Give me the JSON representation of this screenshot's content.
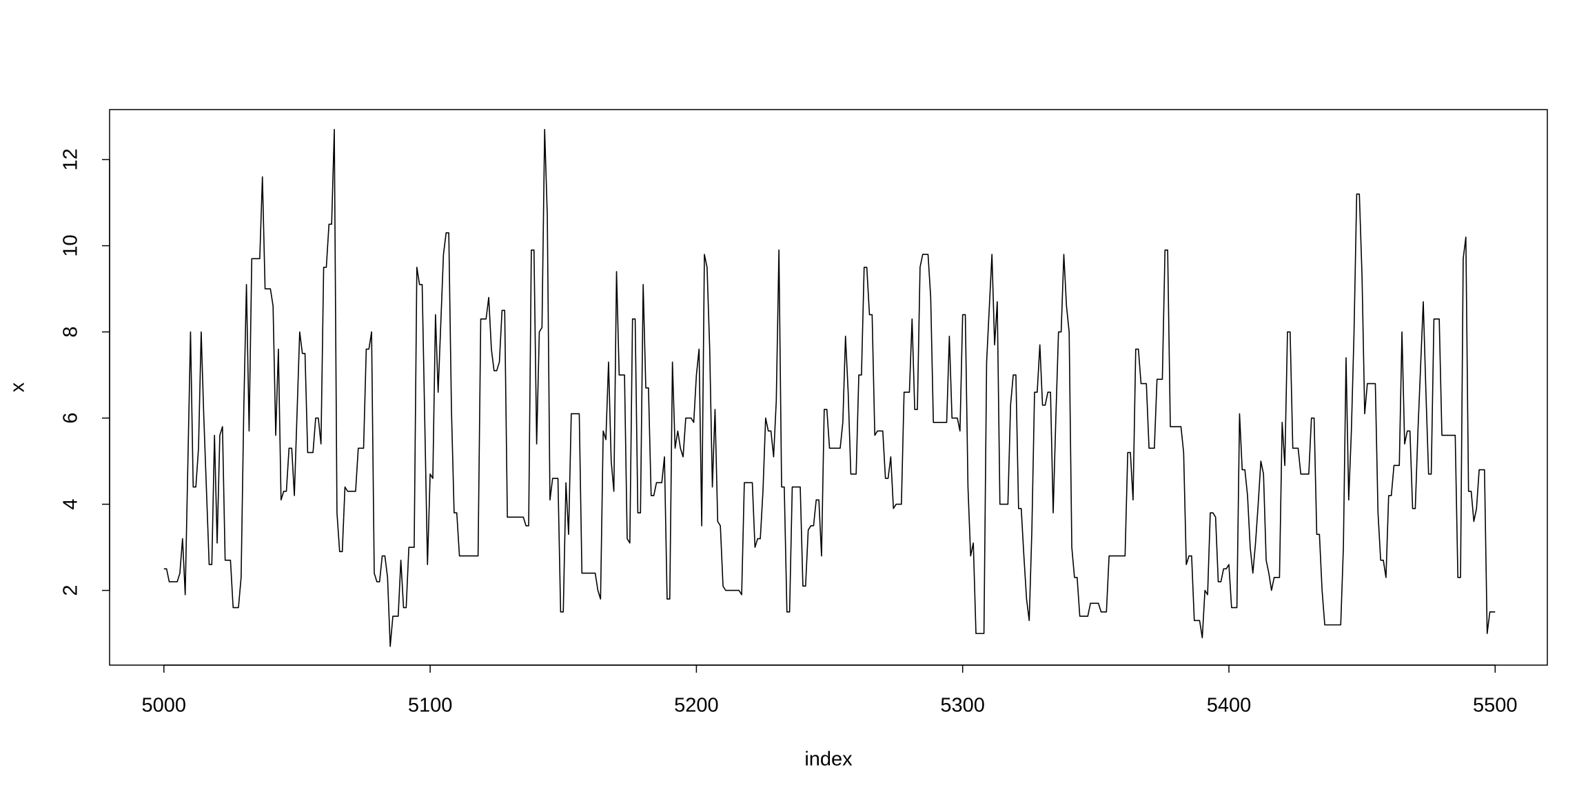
{
  "chart_data": {
    "type": "line",
    "color": "#000000",
    "xlabel": "index",
    "ylabel": "x",
    "xlim": [
      4979.6,
      5519.6
    ],
    "ylim": [
      0.266,
      13.16
    ],
    "xticks": [
      5000,
      5100,
      5200,
      5300,
      5400,
      5500
    ],
    "yticks": [
      2,
      4,
      6,
      8,
      10,
      12
    ],
    "x": [
      5000,
      5001,
      5002,
      5005,
      5006,
      5007,
      5008,
      5010,
      5011,
      5012,
      5013,
      5014,
      5015,
      5017,
      5018,
      5019,
      5020,
      5021,
      5022,
      5023,
      5025,
      5026,
      5028,
      5029,
      5030,
      5031,
      5032,
      5033,
      5036,
      5037,
      5038,
      5040,
      5041,
      5042,
      5043,
      5044,
      5045,
      5046,
      5047,
      5048,
      5049,
      5051,
      5052,
      5053,
      5054,
      5056,
      5057,
      5058,
      5059,
      5060,
      5061,
      5062,
      5063,
      5064,
      5065,
      5066,
      5067,
      5068,
      5069,
      5072,
      5073,
      5075,
      5076,
      5077,
      5078,
      5079,
      5080,
      5081,
      5082,
      5083,
      5084,
      5085,
      5086,
      5088,
      5089,
      5090,
      5091,
      5092,
      5094,
      5095,
      5096,
      5097,
      5099,
      5100,
      5101,
      5102,
      5103,
      5105,
      5106,
      5107,
      5108,
      5109,
      5110,
      5111,
      5118,
      5119,
      5121,
      5122,
      5123,
      5124,
      5125,
      5126,
      5127,
      5128,
      5129,
      5135,
      5136,
      5137,
      5138,
      5139,
      5140,
      5141,
      5142,
      5143,
      5144,
      5145,
      5146,
      5148,
      5149,
      5150,
      5151,
      5152,
      5153,
      5156,
      5157,
      5162,
      5163,
      5164,
      5165,
      5166,
      5167,
      5168,
      5169,
      5170,
      5171,
      5173,
      5174,
      5175,
      5176,
      5177,
      5178,
      5179,
      5180,
      5181,
      5182,
      5183,
      5184,
      5185,
      5187,
      5188,
      5189,
      5190,
      5191,
      5192,
      5193,
      5194,
      5195,
      5196,
      5198,
      5199,
      5200,
      5201,
      5202,
      5203,
      5204,
      5205,
      5206,
      5207,
      5208,
      5209,
      5210,
      5211,
      5216,
      5217,
      5218,
      5221,
      5222,
      5223,
      5224,
      5225,
      5226,
      5227,
      5228,
      5229,
      5230,
      5231,
      5232,
      5233,
      5234,
      5235,
      5236,
      5239,
      5240,
      5241,
      5242,
      5243,
      5244,
      5245,
      5246,
      5247,
      5248,
      5249,
      5250,
      5254,
      5255,
      5256,
      5257,
      5258,
      5260,
      5261,
      5262,
      5263,
      5264,
      5265,
      5266,
      5267,
      5268,
      5270,
      5271,
      5272,
      5273,
      5274,
      5275,
      5277,
      5278,
      5280,
      5281,
      5282,
      5283,
      5284,
      5285,
      5287,
      5288,
      5289,
      5294,
      5295,
      5296,
      5298,
      5299,
      5300,
      5301,
      5302,
      5303,
      5304,
      5305,
      5308,
      5309,
      5311,
      5312,
      5313,
      5314,
      5317,
      5318,
      5319,
      5320,
      5321,
      5322,
      5323,
      5324,
      5325,
      5326,
      5327,
      5328,
      5329,
      5330,
      5331,
      5332,
      5333,
      5334,
      5335,
      5336,
      5337,
      5338,
      5339,
      5340,
      5341,
      5342,
      5343,
      5344,
      5347,
      5348,
      5351,
      5352,
      5354,
      5355,
      5361,
      5362,
      5363,
      5364,
      5365,
      5366,
      5367,
      5369,
      5370,
      5372,
      5373,
      5375,
      5376,
      5377,
      5378,
      5382,
      5383,
      5384,
      5385,
      5386,
      5387,
      5389,
      5390,
      5391,
      5392,
      5393,
      5394,
      5395,
      5396,
      5397,
      5398,
      5399,
      5400,
      5401,
      5403,
      5404,
      5405,
      5406,
      5407,
      5408,
      5409,
      5410,
      5411,
      5412,
      5413,
      5414,
      5415,
      5416,
      5417,
      5419,
      5420,
      5421,
      5422,
      5423,
      5424,
      5426,
      5427,
      5430,
      5431,
      5432,
      5433,
      5434,
      5435,
      5436,
      5442,
      5443,
      5444,
      5445,
      5446,
      5447,
      5448,
      5449,
      5450,
      5451,
      5452,
      5455,
      5456,
      5457,
      5458,
      5459,
      5460,
      5461,
      5462,
      5464,
      5465,
      5466,
      5467,
      5468,
      5469,
      5470,
      5471,
      5473,
      5474,
      5475,
      5476,
      5477,
      5479,
      5480,
      5485,
      5486,
      5487,
      5488,
      5489,
      5490,
      5491,
      5492,
      5493,
      5494,
      5496,
      5497,
      5498,
      5500
    ],
    "values": [
      2.5,
      2.5,
      2.2,
      2.2,
      2.4,
      3.2,
      1.9,
      8.0,
      4.4,
      4.4,
      5.3,
      8.0,
      6.0,
      2.6,
      2.6,
      5.6,
      3.1,
      5.6,
      5.8,
      2.7,
      2.7,
      1.6,
      1.6,
      2.3,
      6.2,
      9.1,
      5.7,
      9.7,
      9.7,
      11.6,
      9.0,
      9.0,
      8.6,
      5.6,
      7.6,
      4.1,
      4.3,
      4.3,
      5.3,
      5.3,
      4.2,
      8.0,
      7.5,
      7.5,
      5.2,
      5.2,
      6.0,
      6.0,
      5.4,
      9.5,
      9.5,
      10.5,
      10.5,
      12.7,
      3.8,
      2.9,
      2.9,
      4.4,
      4.3,
      4.3,
      5.3,
      5.3,
      7.6,
      7.6,
      8.0,
      2.4,
      2.2,
      2.2,
      2.8,
      2.8,
      2.3,
      0.7,
      1.4,
      1.4,
      2.7,
      1.6,
      1.6,
      3.0,
      3.0,
      9.5,
      9.1,
      9.1,
      2.6,
      4.7,
      4.6,
      8.4,
      6.6,
      9.8,
      10.3,
      10.3,
      6.2,
      3.8,
      3.8,
      2.8,
      2.8,
      8.3,
      8.3,
      8.8,
      7.6,
      7.1,
      7.1,
      7.3,
      8.5,
      8.5,
      3.7,
      3.7,
      3.5,
      3.5,
      9.9,
      9.9,
      5.4,
      8.0,
      8.1,
      12.7,
      10.7,
      4.1,
      4.6,
      4.6,
      1.5,
      1.5,
      4.5,
      3.3,
      6.1,
      6.1,
      2.4,
      2.4,
      2.0,
      1.8,
      5.7,
      5.5,
      7.3,
      5.0,
      4.3,
      9.4,
      7.0,
      7.0,
      3.2,
      3.1,
      8.3,
      8.3,
      3.8,
      3.8,
      9.1,
      6.7,
      6.7,
      4.2,
      4.2,
      4.5,
      4.5,
      5.1,
      1.8,
      1.8,
      7.3,
      5.3,
      5.7,
      5.3,
      5.1,
      6.0,
      6.0,
      5.9,
      7.0,
      7.6,
      3.5,
      9.8,
      9.5,
      7.6,
      4.4,
      6.2,
      3.6,
      3.5,
      2.1,
      2.0,
      2.0,
      1.9,
      4.5,
      4.5,
      3.0,
      3.2,
      3.2,
      4.3,
      6.0,
      5.7,
      5.7,
      5.1,
      6.4,
      9.9,
      4.4,
      4.4,
      1.5,
      1.5,
      4.4,
      4.4,
      2.1,
      2.1,
      3.4,
      3.5,
      3.5,
      4.1,
      4.1,
      2.8,
      6.2,
      6.2,
      5.3,
      5.3,
      5.9,
      7.9,
      6.6,
      4.7,
      4.7,
      7.0,
      7.0,
      9.5,
      9.5,
      8.4,
      8.4,
      5.6,
      5.7,
      5.7,
      4.6,
      4.6,
      5.1,
      3.9,
      4.0,
      4.0,
      6.6,
      6.6,
      8.3,
      6.2,
      6.2,
      9.5,
      9.8,
      9.8,
      8.8,
      5.9,
      5.9,
      7.9,
      6.0,
      6.0,
      5.7,
      8.4,
      8.4,
      4.4,
      2.8,
      3.1,
      1.0,
      1.0,
      7.3,
      9.8,
      7.7,
      8.7,
      4.0,
      4.0,
      6.3,
      7.0,
      7.0,
      3.9,
      3.9,
      2.8,
      1.8,
      1.3,
      3.4,
      6.6,
      6.6,
      7.7,
      6.3,
      6.3,
      6.6,
      6.6,
      3.8,
      6.0,
      8.0,
      8.0,
      9.8,
      8.6,
      8.0,
      3.0,
      2.3,
      2.3,
      1.4,
      1.4,
      1.7,
      1.7,
      1.5,
      1.5,
      2.8,
      2.8,
      5.2,
      5.2,
      4.1,
      7.6,
      7.6,
      6.8,
      6.8,
      5.3,
      5.3,
      6.9,
      6.9,
      9.9,
      9.9,
      5.8,
      5.8,
      5.2,
      2.6,
      2.8,
      2.8,
      1.3,
      1.3,
      0.9,
      2.0,
      1.9,
      3.8,
      3.8,
      3.7,
      2.2,
      2.2,
      2.5,
      2.5,
      2.6,
      1.6,
      1.6,
      6.1,
      4.8,
      4.8,
      4.2,
      3.0,
      2.4,
      3.1,
      4.0,
      5.0,
      4.7,
      2.7,
      2.4,
      2.0,
      2.3,
      2.3,
      5.9,
      4.9,
      8.0,
      8.0,
      5.3,
      5.3,
      4.7,
      4.7,
      6.0,
      6.0,
      3.3,
      3.3,
      2.0,
      1.2,
      1.2,
      3.0,
      7.4,
      4.1,
      5.7,
      8.0,
      11.2,
      11.2,
      9.3,
      6.1,
      6.8,
      6.8,
      3.8,
      2.7,
      2.7,
      2.3,
      4.2,
      4.2,
      4.9,
      4.9,
      8.0,
      5.4,
      5.7,
      5.7,
      3.9,
      3.9,
      5.7,
      8.7,
      6.6,
      4.7,
      4.7,
      8.3,
      8.3,
      5.6,
      5.6,
      2.3,
      2.3,
      9.7,
      10.2,
      4.3,
      4.3,
      3.6,
      3.9,
      4.8,
      4.8,
      1.0,
      1.5,
      1.5
    ]
  }
}
